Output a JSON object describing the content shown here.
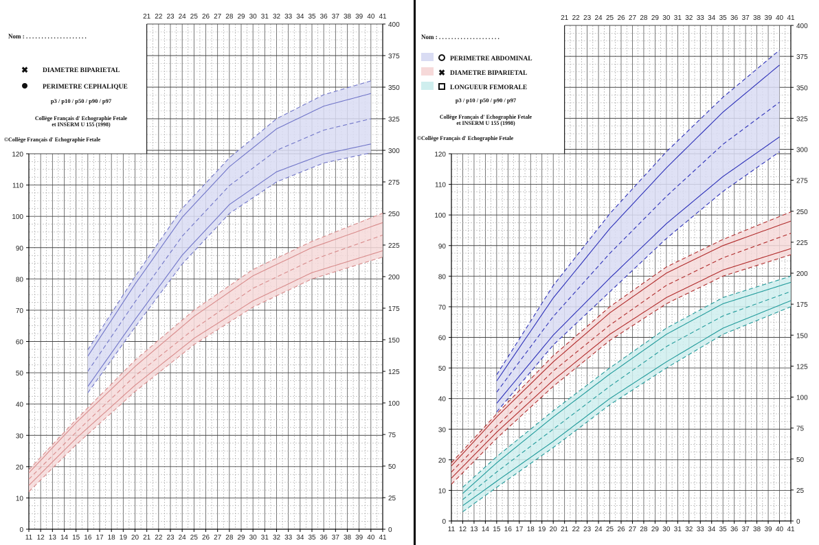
{
  "chart_data": [
    {
      "type": "line",
      "panel": "left",
      "name_label": "Nom : . . . . . . . . . . . . . . . . . . . .",
      "legend": [
        {
          "marker": "asterisk",
          "label": "DIAMETRE BIPARIETAL"
        },
        {
          "marker": "filled-circle",
          "label": "PERIMETRE CEPHALIQUE"
        }
      ],
      "percentile_note": "p3 / p10 / p50 / p90 / p97",
      "source_line1": "Collège Français d' Echographie Fetale",
      "source_line2": "et INSERM U 155 (1998)",
      "copyright": "©Collège Français d' Echographie Fetale",
      "x_ticks": [
        11,
        12,
        13,
        14,
        15,
        16,
        17,
        18,
        19,
        20,
        21,
        22,
        23,
        24,
        25,
        26,
        27,
        28,
        29,
        30,
        31,
        32,
        33,
        34,
        35,
        36,
        37,
        38,
        39,
        40,
        41
      ],
      "x_top_ticks": [
        21,
        22,
        23,
        24,
        25,
        26,
        27,
        28,
        29,
        30,
        31,
        32,
        33,
        34,
        35,
        36,
        37,
        38,
        39,
        40,
        41
      ],
      "left_axis": {
        "ticks": [
          0,
          10,
          20,
          30,
          40,
          50,
          60,
          70,
          80,
          90,
          100,
          110,
          120
        ],
        "range": [
          0,
          120
        ]
      },
      "right_axis": {
        "ticks": [
          0,
          25,
          50,
          75,
          100,
          125,
          150,
          175,
          200,
          225,
          250,
          275,
          300,
          325,
          350,
          375,
          400
        ],
        "range": [
          0,
          400
        ]
      },
      "series": [
        {
          "measure": "PERIMETRE CEPHALIQUE",
          "axis": "right",
          "color": "#6f74c8",
          "fill": "#d9dcf3",
          "x_range": [
            16,
            40
          ],
          "p3": [
            [
              16,
              108
            ],
            [
              20,
              160
            ],
            [
              24,
              210
            ],
            [
              28,
              250
            ],
            [
              32,
              275
            ],
            [
              36,
              290
            ],
            [
              40,
              298
            ]
          ],
          "p10": [
            [
              16,
              113
            ],
            [
              20,
              166
            ],
            [
              24,
              217
            ],
            [
              28,
              257
            ],
            [
              32,
              283
            ],
            [
              36,
              297
            ],
            [
              40,
              305
            ]
          ],
          "p50": [
            [
              16,
              125
            ],
            [
              20,
              180
            ],
            [
              24,
              232
            ],
            [
              28,
              272
            ],
            [
              32,
              300
            ],
            [
              36,
              316
            ],
            [
              40,
              325
            ]
          ],
          "p90": [
            [
              16,
              137
            ],
            [
              20,
              194
            ],
            [
              24,
              247
            ],
            [
              28,
              287
            ],
            [
              32,
              317
            ],
            [
              36,
              335
            ],
            [
              40,
              345
            ]
          ],
          "p97": [
            [
              16,
              142
            ],
            [
              20,
              200
            ],
            [
              24,
              254
            ],
            [
              28,
              294
            ],
            [
              32,
              325
            ],
            [
              36,
              344
            ],
            [
              40,
              355
            ]
          ]
        },
        {
          "measure": "DIAMETRE BIPARIETAL",
          "axis": "left",
          "color": "#d88a8a",
          "fill": "#f6d9d9",
          "x_range": [
            11,
            41
          ],
          "p3": [
            [
              11,
              12
            ],
            [
              15,
              27
            ],
            [
              20,
              44
            ],
            [
              25,
              59
            ],
            [
              30,
              71
            ],
            [
              35,
              80
            ],
            [
              41,
              87
            ]
          ],
          "p10": [
            [
              11,
              14
            ],
            [
              15,
              29
            ],
            [
              20,
              46
            ],
            [
              25,
              61
            ],
            [
              30,
              73
            ],
            [
              35,
              82
            ],
            [
              41,
              89
            ]
          ],
          "p50": [
            [
              11,
              16
            ],
            [
              15,
              31
            ],
            [
              20,
              49
            ],
            [
              25,
              64
            ],
            [
              30,
              77
            ],
            [
              35,
              86
            ],
            [
              41,
              94
            ]
          ],
          "p90": [
            [
              11,
              18
            ],
            [
              15,
              34
            ],
            [
              20,
              52
            ],
            [
              25,
              68
            ],
            [
              30,
              81
            ],
            [
              35,
              90
            ],
            [
              41,
              98
            ]
          ],
          "p97": [
            [
              11,
              19
            ],
            [
              15,
              35
            ],
            [
              20,
              54
            ],
            [
              25,
              70
            ],
            [
              30,
              83
            ],
            [
              35,
              92
            ],
            [
              41,
              101
            ]
          ]
        }
      ]
    },
    {
      "type": "line",
      "panel": "right",
      "name_label": "Nom : . . . . . . . . . . . . . . . . . . . .",
      "legend": [
        {
          "marker": "open-circle",
          "label": "PERIMETRE ABDOMINAL",
          "swatch": "#d9dcf3"
        },
        {
          "marker": "asterisk",
          "label": "DIAMETRE BIPARIETAL",
          "swatch": "#f6d9d9"
        },
        {
          "marker": "open-square",
          "label": "LONGUEUR FEMORALE",
          "swatch": "#cfeeee"
        }
      ],
      "percentile_note": "p3 / p10 / p50 / p90 / p97",
      "source_line1": "Collège Français d' Echographie Fetale",
      "source_line2": "et INSERM U 155 (1998)",
      "copyright": "©Collège Français d' Echographie Fetale",
      "x_ticks": [
        11,
        12,
        13,
        14,
        15,
        16,
        17,
        18,
        19,
        20,
        21,
        22,
        23,
        24,
        25,
        26,
        27,
        28,
        29,
        30,
        31,
        32,
        33,
        34,
        35,
        36,
        37,
        38,
        39,
        40,
        41
      ],
      "x_top_ticks": [
        21,
        22,
        23,
        24,
        25,
        26,
        27,
        28,
        29,
        30,
        31,
        32,
        33,
        34,
        35,
        36,
        37,
        38,
        39,
        40,
        41
      ],
      "left_axis": {
        "ticks": [
          0,
          10,
          20,
          30,
          40,
          50,
          60,
          70,
          80,
          90,
          100,
          110,
          120
        ],
        "range": [
          0,
          120
        ]
      },
      "right_axis": {
        "ticks": [
          0,
          25,
          50,
          75,
          100,
          125,
          150,
          175,
          200,
          225,
          250,
          275,
          300,
          325,
          350,
          375,
          400
        ],
        "range": [
          0,
          400
        ]
      },
      "series": [
        {
          "measure": "PERIMETRE ABDOMINAL",
          "axis": "right",
          "color": "#2b2fb8",
          "fill": "#d9dcf3",
          "x_range": [
            15,
            40
          ],
          "p3": [
            [
              15,
              88
            ],
            [
              20,
              142
            ],
            [
              25,
              185
            ],
            [
              30,
              228
            ],
            [
              35,
              266
            ],
            [
              40,
              298
            ]
          ],
          "p10": [
            [
              15,
              95
            ],
            [
              20,
              150
            ],
            [
              25,
              196
            ],
            [
              30,
              240
            ],
            [
              35,
              278
            ],
            [
              40,
              310
            ]
          ],
          "p50": [
            [
              15,
              104
            ],
            [
              20,
              165
            ],
            [
              25,
              216
            ],
            [
              30,
              262
            ],
            [
              35,
              304
            ],
            [
              40,
              338
            ]
          ],
          "p90": [
            [
              15,
              113
            ],
            [
              20,
              180
            ],
            [
              25,
              236
            ],
            [
              30,
              285
            ],
            [
              35,
              330
            ],
            [
              40,
              368
            ]
          ],
          "p97": [
            [
              15,
              118
            ],
            [
              20,
              190
            ],
            [
              25,
              248
            ],
            [
              30,
              298
            ],
            [
              35,
              342
            ],
            [
              40,
              380
            ]
          ]
        },
        {
          "measure": "DIAMETRE BIPARIETAL",
          "axis": "left",
          "color": "#b02a2a",
          "fill": "#f6d9d9",
          "x_range": [
            11,
            41
          ],
          "p3": [
            [
              11,
              12
            ],
            [
              15,
              27
            ],
            [
              20,
              44
            ],
            [
              25,
              59
            ],
            [
              30,
              71
            ],
            [
              35,
              80
            ],
            [
              41,
              87
            ]
          ],
          "p10": [
            [
              11,
              14
            ],
            [
              15,
              29
            ],
            [
              20,
              46
            ],
            [
              25,
              61
            ],
            [
              30,
              73
            ],
            [
              35,
              82
            ],
            [
              41,
              89
            ]
          ],
          "p50": [
            [
              11,
              16
            ],
            [
              15,
              31
            ],
            [
              20,
              49
            ],
            [
              25,
              64
            ],
            [
              30,
              77
            ],
            [
              35,
              86
            ],
            [
              41,
              94
            ]
          ],
          "p90": [
            [
              11,
              18
            ],
            [
              15,
              34
            ],
            [
              20,
              52
            ],
            [
              25,
              68
            ],
            [
              30,
              81
            ],
            [
              35,
              90
            ],
            [
              41,
              98
            ]
          ],
          "p97": [
            [
              11,
              19
            ],
            [
              15,
              35
            ],
            [
              20,
              54
            ],
            [
              25,
              70
            ],
            [
              30,
              83
            ],
            [
              35,
              92
            ],
            [
              41,
              101
            ]
          ]
        },
        {
          "measure": "LONGUEUR FEMORALE",
          "axis": "left",
          "color": "#1f9a9a",
          "fill": "#cfeeee",
          "x_range": [
            12,
            41
          ],
          "p3": [
            [
              12,
              3
            ],
            [
              15,
              11
            ],
            [
              20,
              24
            ],
            [
              25,
              38
            ],
            [
              30,
              50
            ],
            [
              35,
              61
            ],
            [
              41,
              70
            ]
          ],
          "p10": [
            [
              12,
              5
            ],
            [
              15,
              13
            ],
            [
              20,
              26
            ],
            [
              25,
              40
            ],
            [
              30,
              52
            ],
            [
              35,
              63
            ],
            [
              41,
              72
            ]
          ],
          "p50": [
            [
              12,
              7
            ],
            [
              15,
              16
            ],
            [
              20,
              30
            ],
            [
              25,
              44
            ],
            [
              30,
              57
            ],
            [
              35,
              67
            ],
            [
              41,
              75
            ]
          ],
          "p90": [
            [
              12,
              9
            ],
            [
              15,
              19
            ],
            [
              20,
              34
            ],
            [
              25,
              48
            ],
            [
              30,
              61
            ],
            [
              35,
              71
            ],
            [
              41,
              78
            ]
          ],
          "p97": [
            [
              12,
              11
            ],
            [
              15,
              21
            ],
            [
              20,
              36
            ],
            [
              25,
              50
            ],
            [
              30,
              63
            ],
            [
              35,
              73
            ],
            [
              41,
              80
            ]
          ]
        }
      ]
    }
  ]
}
